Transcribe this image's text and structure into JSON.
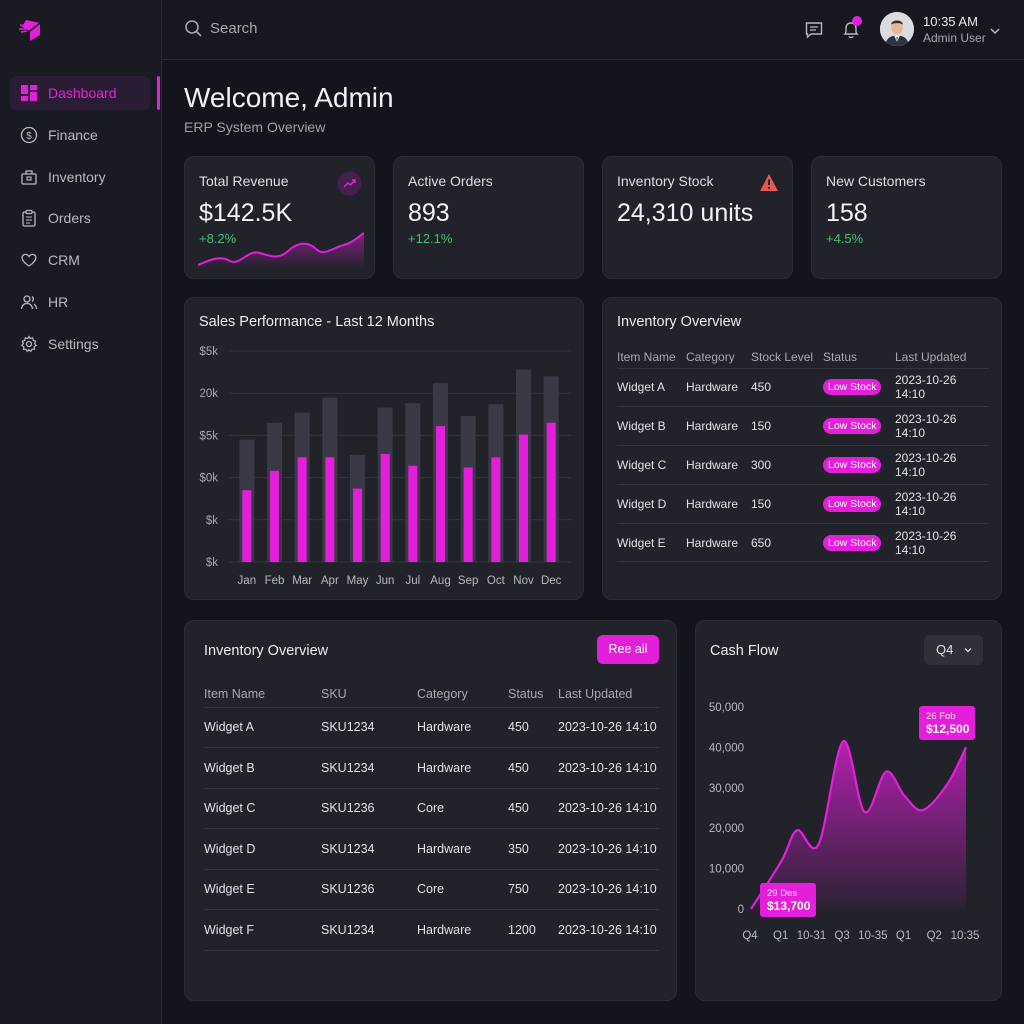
{
  "sidebar": {
    "items": [
      {
        "label": "Dashboard",
        "icon": "dashboard-icon",
        "active": true
      },
      {
        "label": "Finance",
        "icon": "dollar-icon"
      },
      {
        "label": "Inventory",
        "icon": "box-icon"
      },
      {
        "label": "Orders",
        "icon": "clipboard-icon"
      },
      {
        "label": "CRM",
        "icon": "heart-icon"
      },
      {
        "label": "HR",
        "icon": "users-icon"
      },
      {
        "label": "Settings",
        "icon": "gear-icon"
      }
    ]
  },
  "topbar": {
    "search_placeholder": "Search",
    "time": "10:35 AM",
    "user": "Admin User"
  },
  "header": {
    "title": "Welcome, Admin",
    "subtitle": "ERP System Overview"
  },
  "kpis": [
    {
      "title": "Total Revenue",
      "value": "$142.5K",
      "delta": "+8.2%",
      "icon": "trend-up-icon"
    },
    {
      "title": "Active Orders",
      "value": "893",
      "delta": "+12.1%"
    },
    {
      "title": "Inventory Stock",
      "value": "24,310 units",
      "icon": "warning-icon"
    },
    {
      "title": "New Customers",
      "value": "158",
      "delta": "+4.5%"
    }
  ],
  "sales": {
    "title": "Sales Performance - Last 12 Months"
  },
  "chart_data": [
    {
      "type": "bar",
      "title": "Sales Performance - Last 12 Months",
      "categories": [
        "Jan",
        "Feb",
        "Mar",
        "Apr",
        "May",
        "Jun",
        "Jul",
        "Aug",
        "Sep",
        "Oct",
        "Nov",
        "Dec"
      ],
      "y_tick_labels": [
        "$5k",
        "20k",
        "$5k",
        "$0k",
        "$k",
        "$k"
      ],
      "ylim": [
        0,
        25
      ],
      "series": [
        {
          "values": [
            14.5,
            16.5,
            17.7,
            19.5,
            12.7,
            18.3,
            18.8,
            21.2,
            17.3,
            18.7,
            22.8,
            22.0
          ]
        },
        {
          "values": [
            8.5,
            10.8,
            12.4,
            12.4,
            8.7,
            12.8,
            11.4,
            16.1,
            11.2,
            12.4,
            15.1,
            16.5
          ]
        }
      ],
      "colors": [
        "#3a3a46",
        "#e41fdc"
      ]
    },
    {
      "type": "area",
      "title": "Cash Flow",
      "x_tick_labels": [
        "Q4",
        "Q1",
        "10-31",
        "Q3",
        "10-35",
        "Q1",
        "Q2",
        "10:35"
      ],
      "y_tick_labels": [
        "0",
        "10,000",
        "20,000",
        "30,000",
        "40,000",
        "50,000"
      ],
      "ylim": [
        0,
        50000
      ],
      "x": [
        0,
        1,
        1.5,
        2.2,
        3.0,
        3.7,
        4.4,
        5.0,
        5.6,
        6.4,
        7.0
      ],
      "values": [
        0,
        12000,
        19500,
        16000,
        41500,
        24000,
        34000,
        28000,
        24500,
        31000,
        40000
      ],
      "callouts": [
        {
          "label": "26 Fob",
          "value": "$12,500"
        },
        {
          "label": "29 Des",
          "value": "$13,700"
        }
      ],
      "color": "#e41fdc"
    }
  ],
  "inventory_overview": {
    "title": "Inventory Overview",
    "columns": [
      "Item Name",
      "Category",
      "Stock Level",
      "Status",
      "Last Updated"
    ],
    "rows": [
      [
        "Widget A",
        "Hardware",
        "450",
        "Low Stock",
        "2023-10-26 14:10"
      ],
      [
        "Widget B",
        "Hardware",
        "150",
        "Low Stock",
        "2023-10-26 14:10"
      ],
      [
        "Widget C",
        "Hardware",
        "300",
        "Low Stock",
        "2023-10-26 14:10"
      ],
      [
        "Widget D",
        "Hardware",
        "150",
        "Low Stock",
        "2023-10-26 14:10"
      ],
      [
        "Widget E",
        "Hardware",
        "650",
        "Low Stock",
        "2023-10-26 14:10"
      ]
    ]
  },
  "inventory_overview_2": {
    "title": "Inventory Overview",
    "button": "Ree all",
    "columns": [
      "Item Name",
      "SKU",
      "Category",
      "Status",
      "Last Updated"
    ],
    "rows": [
      [
        "Widget A",
        "SKU1234",
        "Hardware",
        "450",
        "2023-10-26 14:10"
      ],
      [
        "Widget B",
        "SKU1234",
        "Hardware",
        "450",
        "2023-10-26 14:10"
      ],
      [
        "Widget C",
        "SKU1236",
        "Core",
        "450",
        "2023-10-26 14:10"
      ],
      [
        "Widget D",
        "SKU1234",
        "Hardware",
        "350",
        "2023-10-26 14:10"
      ],
      [
        "Widget E",
        "SKU1236",
        "Core",
        "750",
        "2023-10-26 14:10"
      ],
      [
        "Widget F",
        "SKU1234",
        "Hardware",
        "1200",
        "2023-10-26 14:10"
      ]
    ]
  },
  "cashflow": {
    "title": "Cash Flow",
    "period": "Q4"
  },
  "colors": {
    "accent": "#e41fdc",
    "positive": "#3fc270",
    "warning": "#e8584c"
  }
}
